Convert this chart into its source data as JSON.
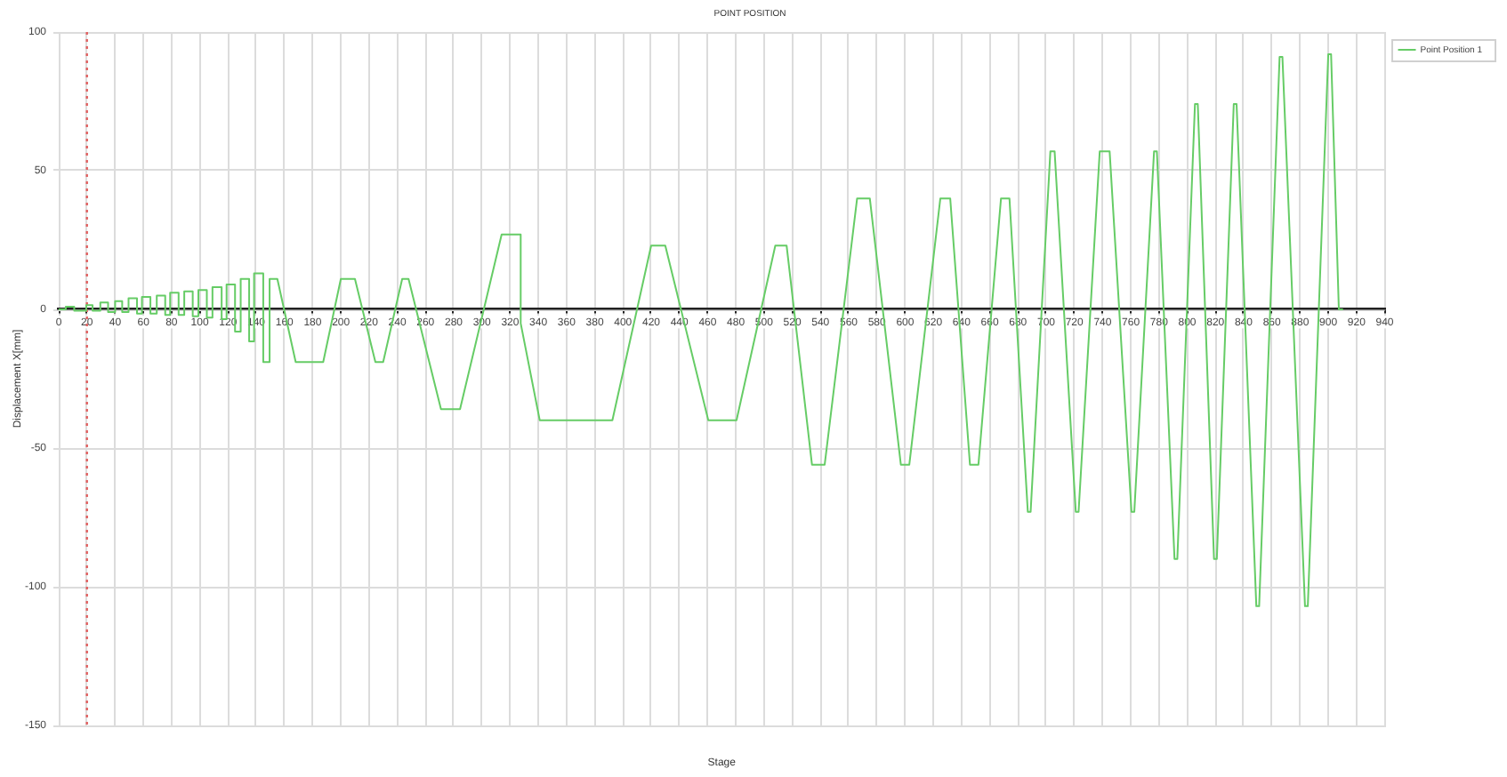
{
  "chart_data": {
    "type": "line",
    "title": "POINT POSITION",
    "xlabel": "Stage",
    "ylabel": "Displacement X[mm]",
    "xlim": [
      0,
      940
    ],
    "xticks": [
      0,
      20,
      40,
      60,
      80,
      100,
      120,
      140,
      160,
      180,
      200,
      220,
      240,
      260,
      280,
      300,
      320,
      340,
      360,
      380,
      400,
      420,
      440,
      460,
      480,
      500,
      520,
      540,
      560,
      580,
      600,
      620,
      640,
      660,
      680,
      700,
      720,
      740,
      760,
      780,
      800,
      820,
      840,
      860,
      880,
      900,
      920,
      940
    ],
    "ylim": [
      -150,
      100
    ],
    "yticks": [
      -150,
      -100,
      -50,
      0,
      50,
      100
    ],
    "grid": true,
    "legend": "top right",
    "ref_lines": [
      {
        "axis": "x",
        "value": 20,
        "color": "#e06060",
        "line_style": "dotted"
      }
    ],
    "x": [
      0,
      5,
      5,
      11,
      11,
      19.5,
      19.5,
      24,
      24,
      29.5,
      29.5,
      35,
      35,
      40,
      40,
      45,
      45,
      49.5,
      49.5,
      55.5,
      55.5,
      59,
      59,
      65,
      65,
      69.5,
      69.5,
      75.5,
      75.5,
      79,
      79,
      85,
      85,
      89,
      89,
      95,
      95,
      99,
      99,
      105,
      105,
      109,
      109,
      115.5,
      115.5,
      119,
      119,
      125,
      125,
      129,
      129,
      135,
      135,
      138.5,
      138.5,
      145,
      145,
      149.5,
      149.5,
      155,
      168,
      187.5,
      200,
      210,
      224.5,
      230,
      243.5,
      248,
      271,
      284.5,
      314,
      327.5,
      327.5,
      341,
      392.5,
      420,
      430,
      460.5,
      480.5,
      508,
      516,
      534,
      543,
      566,
      575,
      597,
      603,
      625,
      632,
      646,
      652,
      668,
      674,
      687,
      689,
      703,
      706,
      721,
      723,
      738,
      745,
      760.5,
      762.5,
      776.5,
      778.5,
      791,
      793,
      805.5,
      807.5,
      819,
      821,
      833,
      835,
      849,
      851,
      865.5,
      867.5,
      883.5,
      885.5,
      900,
      902,
      907.5,
      910
    ],
    "series": [
      {
        "name": "Point Position 1",
        "color": "#66cc66",
        "values": [
          0,
          0,
          1,
          1,
          -0.5,
          -0.5,
          1.5,
          1.5,
          -0.5,
          -0.5,
          2.5,
          2.5,
          -1,
          -1,
          3,
          3,
          -1,
          -1,
          4,
          4,
          -1.5,
          -1.5,
          4.5,
          4.5,
          -1.5,
          -1.5,
          5,
          5,
          -2,
          -2,
          6,
          6,
          -2,
          -2,
          6.5,
          6.5,
          -2.5,
          -2.5,
          7,
          7,
          -3,
          -3,
          8,
          8,
          -3.5,
          -3.5,
          9,
          9,
          -8,
          -8,
          11,
          11,
          -11.5,
          -11.5,
          13,
          13,
          -19,
          -19,
          11,
          11,
          -19,
          -19,
          11,
          11,
          -19,
          -19,
          11,
          11,
          -36,
          -36,
          27,
          27,
          -5,
          -40,
          -40,
          23,
          23,
          -40,
          -40,
          23,
          23,
          -56,
          -56,
          40,
          40,
          -56,
          -56,
          40,
          40,
          -56,
          -56,
          40,
          40,
          -73,
          -73,
          57,
          57,
          -73,
          -73,
          57,
          57,
          -73,
          -73,
          57,
          57,
          -90,
          -90,
          74,
          74,
          -90,
          -90,
          74,
          74,
          -107,
          -107,
          91,
          91,
          -107,
          -107,
          92,
          92,
          0,
          0
        ]
      }
    ]
  }
}
